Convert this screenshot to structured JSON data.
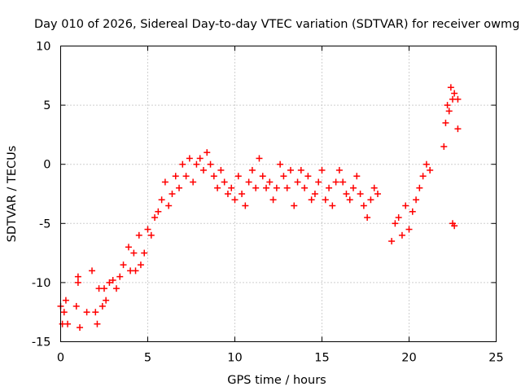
{
  "chart_data": {
    "type": "scatter",
    "title": "Day 010 of 2026, Sidereal Day-to-day VTEC variation (SDTVAR) for receiver owmg",
    "xlabel": "GPS time / hours",
    "ylabel": "SDTVAR / TECUs",
    "xlim": [
      0,
      25
    ],
    "ylim": [
      -15,
      10
    ],
    "x_ticks": [
      0,
      5,
      10,
      15,
      20,
      25
    ],
    "x_tick_labels": [
      "0",
      "5",
      "10",
      "15",
      "20",
      "25"
    ],
    "y_ticks": [
      -15,
      -10,
      -5,
      0,
      5,
      10
    ],
    "y_tick_labels": [
      "-15",
      "-10",
      "-5",
      "0",
      "5",
      "10"
    ],
    "grid": true,
    "marker": "+",
    "series": [
      {
        "name": "SDTVAR",
        "color": "#ff0000",
        "x": [
          0.0,
          0.1,
          0.2,
          0.3,
          0.4,
          0.9,
          1.0,
          1.1,
          1.0,
          1.5,
          1.8,
          2.0,
          2.1,
          2.2,
          2.4,
          2.5,
          2.6,
          2.8,
          3.0,
          3.2,
          3.4,
          3.6,
          3.9,
          4.0,
          4.2,
          4.3,
          4.5,
          4.6,
          4.8,
          5.0,
          5.2,
          5.4,
          5.6,
          5.8,
          6.0,
          6.2,
          6.4,
          6.6,
          6.8,
          7.0,
          7.2,
          7.4,
          7.6,
          7.8,
          8.0,
          8.2,
          8.4,
          8.6,
          8.8,
          9.0,
          9.2,
          9.4,
          9.6,
          9.8,
          10.0,
          10.2,
          10.4,
          10.6,
          10.8,
          11.0,
          11.2,
          11.4,
          11.6,
          11.8,
          12.0,
          12.2,
          12.4,
          12.6,
          12.8,
          13.0,
          13.2,
          13.4,
          13.6,
          13.8,
          14.0,
          14.2,
          14.4,
          14.6,
          14.8,
          15.0,
          15.2,
          15.4,
          15.6,
          15.8,
          16.0,
          16.2,
          16.4,
          16.6,
          16.8,
          17.0,
          17.2,
          17.4,
          17.6,
          17.8,
          18.0,
          18.2,
          19.0,
          19.2,
          19.4,
          19.6,
          19.8,
          20.0,
          20.2,
          20.4,
          20.6,
          20.8,
          21.0,
          21.2,
          22.0,
          22.1,
          22.2,
          22.3,
          22.4,
          22.5,
          22.6,
          22.8,
          22.5,
          22.6,
          22.8
        ],
        "y": [
          -12.0,
          -13.5,
          -12.5,
          -11.5,
          -13.5,
          -12.0,
          -10.0,
          -13.8,
          -9.5,
          -12.5,
          -9.0,
          -12.5,
          -13.5,
          -10.5,
          -12.0,
          -10.5,
          -11.5,
          -10.0,
          -9.8,
          -10.5,
          -9.5,
          -8.5,
          -7.0,
          -9.0,
          -7.5,
          -9.0,
          -6.0,
          -8.5,
          -7.5,
          -5.5,
          -6.0,
          -4.5,
          -4.0,
          -3.0,
          -1.5,
          -3.5,
          -2.5,
          -1.0,
          -2.0,
          0.0,
          -1.0,
          0.5,
          -1.5,
          0.0,
          0.5,
          -0.5,
          1.0,
          0.0,
          -1.0,
          -2.0,
          -0.5,
          -1.5,
          -2.5,
          -2.0,
          -3.0,
          -1.0,
          -2.5,
          -3.5,
          -1.5,
          -0.5,
          -2.0,
          0.5,
          -1.0,
          -2.0,
          -1.5,
          -3.0,
          -2.0,
          0.0,
          -1.0,
          -2.0,
          -0.5,
          -3.5,
          -1.5,
          -0.5,
          -2.0,
          -1.0,
          -3.0,
          -2.5,
          -1.5,
          -0.5,
          -3.0,
          -2.0,
          -3.5,
          -1.5,
          -0.5,
          -1.5,
          -2.5,
          -3.0,
          -2.0,
          -1.0,
          -2.5,
          -3.5,
          -4.5,
          -3.0,
          -2.0,
          -2.5,
          -6.5,
          -5.0,
          -4.5,
          -6.0,
          -3.5,
          -5.5,
          -4.0,
          -3.0,
          -2.0,
          -1.0,
          0.0,
          -0.5,
          1.5,
          3.5,
          5.0,
          4.5,
          6.5,
          5.5,
          6.0,
          3.0,
          -5.0,
          -5.2,
          5.5
        ]
      }
    ]
  }
}
